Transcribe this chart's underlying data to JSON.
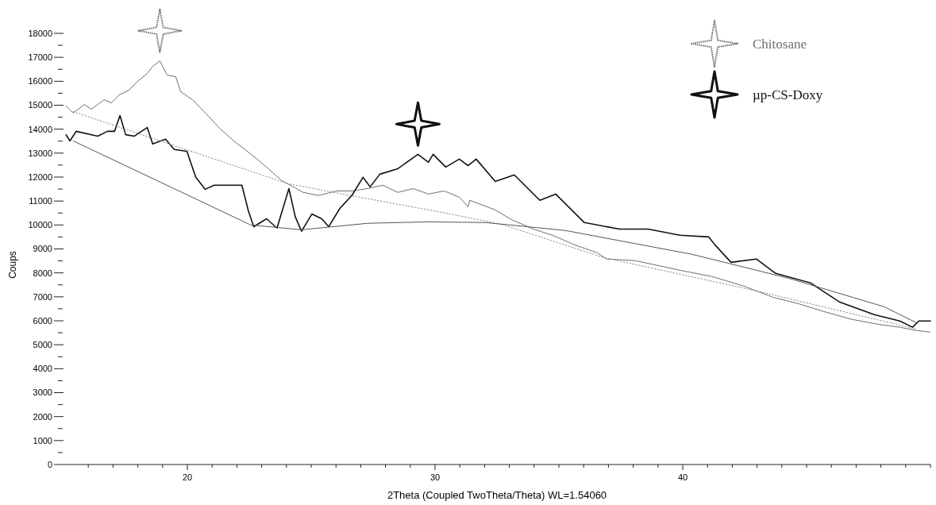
{
  "chart_data": {
    "type": "line",
    "xlabel": "2Theta (Coupled TwoTheta/Theta) WL=1.54060",
    "ylabel": "Coups",
    "xlim": [
      15,
      50
    ],
    "ylim": [
      0,
      18000
    ],
    "xticks": [
      {
        "value": 16,
        "label": null
      },
      {
        "value": 17,
        "label": null
      },
      {
        "value": 18,
        "label": null
      },
      {
        "value": 19,
        "label": null
      },
      20,
      {
        "value": 21,
        "label": null
      },
      {
        "value": 22,
        "label": null
      },
      {
        "value": 23,
        "label": null
      },
      {
        "value": 24,
        "label": null
      },
      {
        "value": 25,
        "label": null
      },
      {
        "value": 26,
        "label": null
      },
      {
        "value": 27,
        "label": null
      },
      {
        "value": 28,
        "label": null
      },
      {
        "value": 29,
        "label": null
      },
      30,
      {
        "value": 31,
        "label": null
      },
      {
        "value": 32,
        "label": null
      },
      {
        "value": 33,
        "label": null
      },
      {
        "value": 34,
        "label": null
      },
      {
        "value": 35,
        "label": null
      },
      {
        "value": 36,
        "label": null
      },
      {
        "value": 37,
        "label": null
      },
      {
        "value": 38,
        "label": null
      },
      {
        "value": 39,
        "label": null
      },
      40,
      {
        "value": 41,
        "label": null
      },
      {
        "value": 42,
        "label": null
      },
      {
        "value": 43,
        "label": null
      },
      {
        "value": 44,
        "label": null
      },
      {
        "value": 45,
        "label": null
      },
      {
        "value": 46,
        "label": null
      },
      {
        "value": 47,
        "label": null
      },
      {
        "value": 48,
        "label": null
      },
      {
        "value": 49,
        "label": null
      },
      {
        "value": 50,
        "label": null
      }
    ],
    "yticks": [
      0,
      {
        "value": 500,
        "label": null
      },
      1000,
      {
        "value": 1500,
        "label": null
      },
      2000,
      {
        "value": 2500,
        "label": null
      },
      3000,
      {
        "value": 3500,
        "label": null
      },
      4000,
      {
        "value": 4500,
        "label": null
      },
      5000,
      {
        "value": 5500,
        "label": null
      },
      6000,
      {
        "value": 6500,
        "label": null
      },
      7000,
      {
        "value": 7500,
        "label": null
      },
      8000,
      {
        "value": 8500,
        "label": null
      },
      9000,
      {
        "value": 9500,
        "label": null
      },
      10000,
      {
        "value": 10500,
        "label": null
      },
      11000,
      {
        "value": 11500,
        "label": null
      },
      12000,
      {
        "value": 12500,
        "label": null
      },
      13000,
      {
        "value": 13500,
        "label": null
      },
      14000,
      {
        "value": 14500,
        "label": null
      },
      15000,
      {
        "value": 15500,
        "label": null
      },
      16000,
      {
        "value": 16500,
        "label": null
      },
      17000,
      {
        "value": 17500,
        "label": null
      },
      18000
    ],
    "legend": "top right",
    "grid": false,
    "marker": "none",
    "series": [
      {
        "name": "Chitosane",
        "color": "#6e6e6e",
        "line_style": "solid",
        "x": [
          15.1,
          15.39,
          15.84,
          16.13,
          16.64,
          16.93,
          17.25,
          17.64,
          17.99,
          18.38,
          18.6,
          18.89,
          19.18,
          19.53,
          19.73,
          20.21,
          20.85,
          21.33,
          21.95,
          22.33,
          22.81,
          23.3,
          23.81,
          24.16,
          24.68,
          25.29,
          26.03,
          26.64,
          27.28,
          27.89,
          28.5,
          29.12,
          29.73,
          30.37,
          30.98,
          31.33,
          31.4,
          32.43,
          33.07,
          33.97,
          34.74,
          35.64,
          36.54,
          36.93,
          38.09,
          39.89,
          41.17,
          42.46,
          43.62,
          44.65,
          45.68,
          46.83,
          47.86,
          48.76,
          49.41,
          49.98
        ],
        "values": [
          14970,
          14670,
          15030,
          14830,
          15230,
          15100,
          15430,
          15630,
          16000,
          16320,
          16620,
          16850,
          16260,
          16190,
          15560,
          15230,
          14540,
          14010,
          13440,
          13150,
          12750,
          12320,
          11850,
          11660,
          11360,
          11230,
          11420,
          11420,
          11520,
          11660,
          11360,
          11520,
          11290,
          11420,
          11160,
          10760,
          11030,
          10630,
          10230,
          9830,
          9570,
          9170,
          8840,
          8580,
          8510,
          8110,
          7850,
          7450,
          6990,
          6720,
          6390,
          6060,
          5860,
          5730,
          5600,
          5530
        ]
      },
      {
        "name": "µp-CS-Doxy",
        "color": "#111111",
        "line_style": "solid",
        "x": [
          15.1,
          15.26,
          15.51,
          16.38,
          16.77,
          17.06,
          17.28,
          17.51,
          17.86,
          18.38,
          18.6,
          19.12,
          19.47,
          19.98,
          20.34,
          20.72,
          21.08,
          21.82,
          22.2,
          22.46,
          22.68,
          23.2,
          23.62,
          24.1,
          24.36,
          24.61,
          25.03,
          25.42,
          25.71,
          26.16,
          26.64,
          27.09,
          27.38,
          27.77,
          28.5,
          29.31,
          29.73,
          29.92,
          30.43,
          30.98,
          31.33,
          31.66,
          32.43,
          33.2,
          34.23,
          34.87,
          36.03,
          37.44,
          38.6,
          39.89,
          41.05,
          41.3,
          41.95,
          42.97,
          43.75,
          45.16,
          46.32,
          47.73,
          48.76,
          49.28,
          49.53,
          50.0
        ],
        "values": [
          13770,
          13510,
          13910,
          13710,
          13910,
          13910,
          14570,
          13770,
          13710,
          14070,
          13380,
          13580,
          13150,
          13080,
          11990,
          11490,
          11660,
          11660,
          11660,
          10600,
          9930,
          10260,
          9870,
          11520,
          10330,
          9740,
          10460,
          10260,
          9930,
          10700,
          11230,
          11990,
          11590,
          12120,
          12350,
          12950,
          12620,
          12950,
          12420,
          12750,
          12480,
          12750,
          11820,
          12090,
          11030,
          11290,
          10100,
          9830,
          9830,
          9570,
          9500,
          9170,
          8440,
          8580,
          7980,
          7580,
          6790,
          6260,
          5990,
          5730,
          5990,
          5990
        ]
      },
      {
        "color": "#8a8a8a",
        "line_style": "dotted",
        "x": [
          15.39,
          24.07,
          27.0,
          30.11,
          32.68,
          36.8,
          42.97,
          49.41
        ],
        "values": [
          14730,
          11720,
          11150,
          10560,
          10030,
          8640,
          7250,
          5660
        ]
      },
      {
        "color": "#555555",
        "line_style": "solid",
        "x": [
          15.39,
          22.56,
          24.61,
          27.28,
          29.73,
          32.04,
          35.26,
          40.4,
          44.26,
          48.12,
          49.41
        ],
        "values": [
          13510,
          10000,
          9800,
          10070,
          10130,
          10100,
          9770,
          8770,
          7780,
          6590,
          5930
        ]
      }
    ]
  }
}
